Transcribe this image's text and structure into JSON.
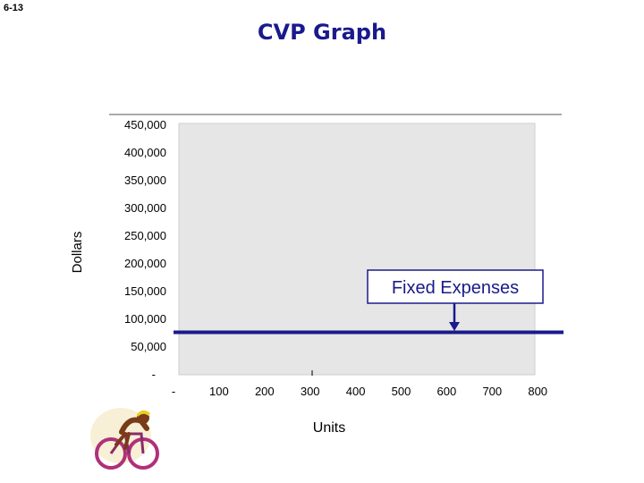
{
  "slide_number": "6-13",
  "chart_data": {
    "type": "line",
    "title": "CVP Graph",
    "xlabel": "Units",
    "ylabel": "Dollars",
    "x_ticks": [
      "-",
      "100",
      "200",
      "300",
      "400",
      "500",
      "600",
      "700",
      "800"
    ],
    "y_ticks": [
      "-",
      "50,000",
      "100,000",
      "150,000",
      "200,000",
      "250,000",
      "300,000",
      "350,000",
      "400,000",
      "450,000"
    ],
    "xlim": [
      0,
      800
    ],
    "ylim": [
      0,
      450000
    ],
    "series": [
      {
        "name": "Fixed Expenses",
        "x": [
          0,
          800
        ],
        "values": [
          75000,
          75000
        ],
        "color": "#1a1a8c"
      }
    ],
    "annotations": [
      {
        "text": "Fixed Expenses",
        "points_to": {
          "x": 620,
          "y": 75000
        }
      }
    ],
    "plot_background": "#e6e6e6",
    "grid": false
  },
  "decoration": {
    "image": "cyclist-clipart"
  }
}
